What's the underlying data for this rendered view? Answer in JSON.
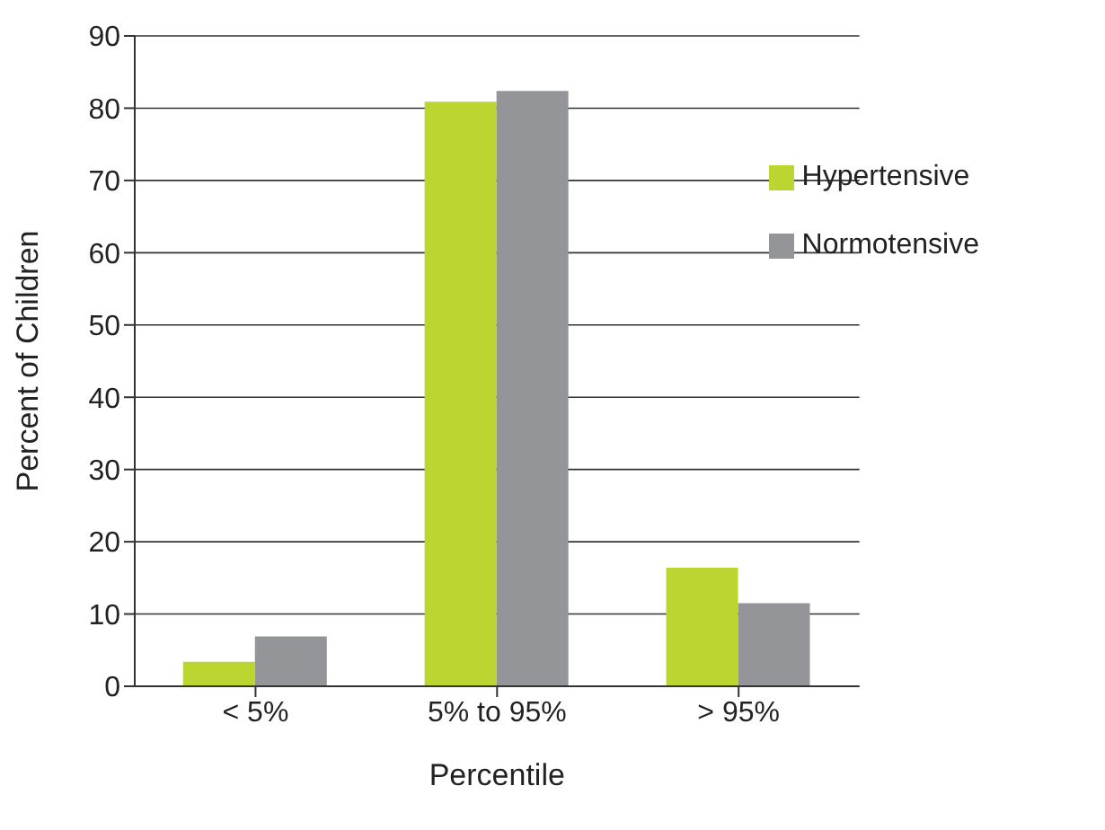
{
  "chart_data": {
    "type": "bar",
    "xlabel": "Percentile",
    "ylabel": "Percent of Children",
    "categories": [
      "< 5%",
      "5% to 95%",
      "> 95%"
    ],
    "series": [
      {
        "name": "Hypertensive",
        "color": "#bcd531",
        "values": [
          3.4,
          80.9,
          16.4
        ]
      },
      {
        "name": "Normotensive",
        "color": "#939598",
        "values": [
          6.9,
          82.4,
          11.5
        ]
      }
    ],
    "ylim": [
      0,
      90
    ],
    "yticks": [
      0,
      10,
      20,
      30,
      40,
      50,
      60,
      70,
      80,
      90
    ],
    "grid": "y",
    "legend": "top right"
  }
}
